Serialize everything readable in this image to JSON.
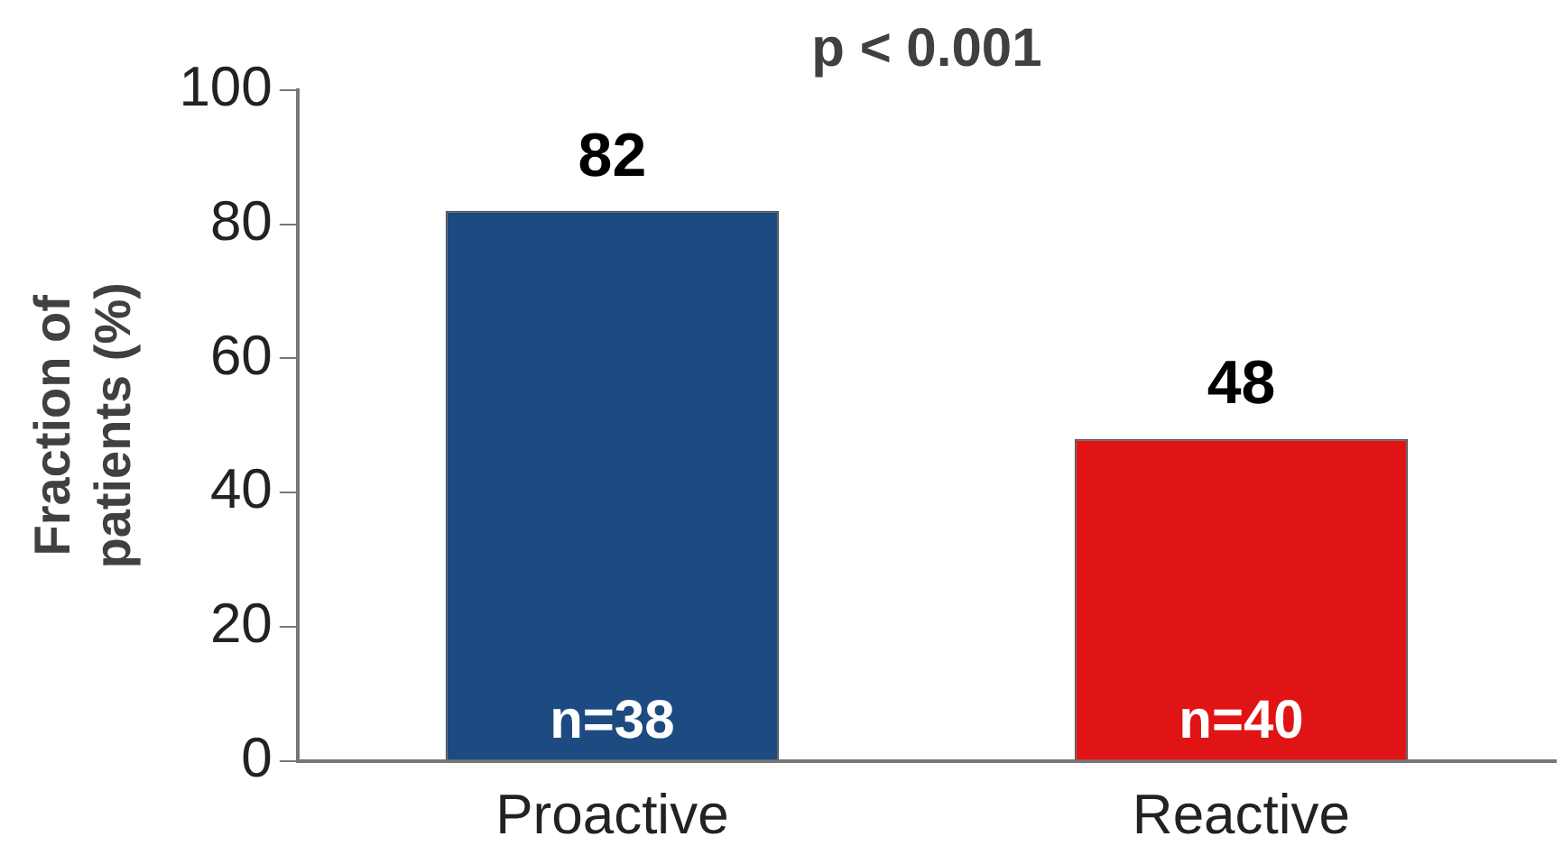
{
  "chart_data": {
    "type": "bar",
    "ylabel": "Fraction of patients (%)",
    "categories": [
      "Proactive",
      "Reactive"
    ],
    "values": [
      82,
      48
    ],
    "colors": [
      "#1d4a80",
      "#e01414"
    ],
    "ylim": [
      0,
      100
    ],
    "yticks": [
      0,
      20,
      40,
      60,
      80,
      100
    ],
    "grid": false,
    "legend": false,
    "data_labels": true,
    "annotations": [
      "p < 0.001",
      {
        "text": "n=38",
        "x": "Proactive",
        "y": 0
      },
      {
        "text": "n=40",
        "x": "Reactive",
        "y": 0
      }
    ]
  }
}
